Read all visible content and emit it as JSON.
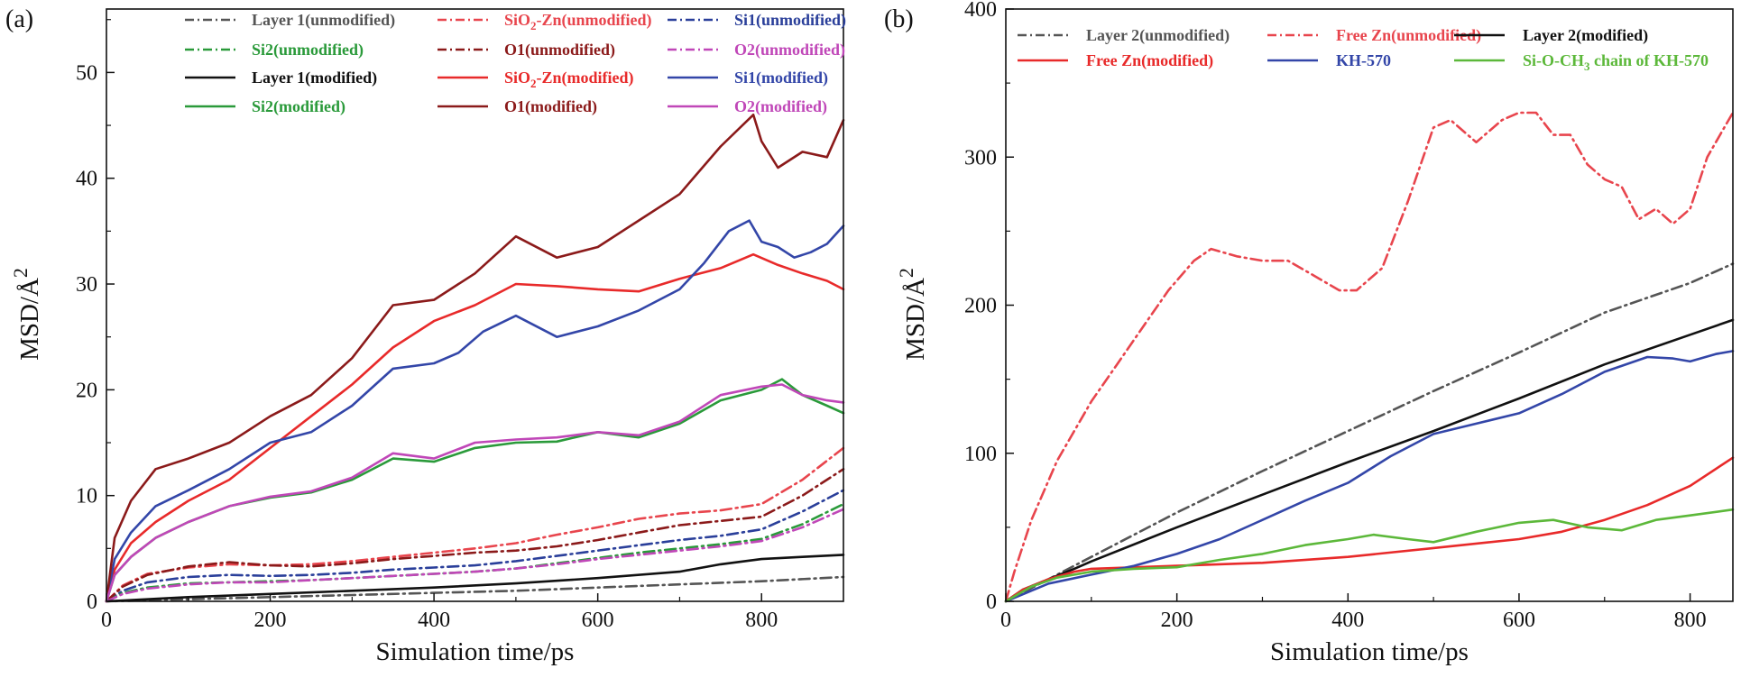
{
  "chart_data": [
    {
      "type": "line",
      "panel_label": "(a)",
      "xlabel": "Simulation time/ps",
      "ylabel": "MSD/Å",
      "ylabel_sup": "2",
      "xlim": [
        0,
        900
      ],
      "ylim": [
        0,
        56
      ],
      "xticks": [
        0,
        200,
        400,
        600,
        800
      ],
      "yticks": [
        0,
        10,
        20,
        30,
        40,
        50
      ],
      "legend_position": "top",
      "series": [
        {
          "name": "Layer 1(unmodified)",
          "sub": "",
          "name_tail": "",
          "color": "#555555",
          "style": "dashdot",
          "x": [
            0,
            100,
            200,
            300,
            400,
            500,
            600,
            700,
            800,
            900
          ],
          "y": [
            0,
            0.2,
            0.4,
            0.6,
            0.8,
            1.0,
            1.3,
            1.6,
            1.9,
            2.3
          ]
        },
        {
          "name": "SiO",
          "sub": "2",
          "name_tail": "-Zn(unmodified)",
          "color": "#e8454d",
          "style": "dashdot",
          "x": [
            0,
            20,
            50,
            100,
            150,
            200,
            250,
            300,
            350,
            400,
            450,
            500,
            550,
            600,
            650,
            700,
            750,
            800,
            850,
            900
          ],
          "y": [
            0,
            1.5,
            2.6,
            3.2,
            3.5,
            3.4,
            3.5,
            3.8,
            4.2,
            4.6,
            5.0,
            5.5,
            6.3,
            7.0,
            7.8,
            8.3,
            8.6,
            9.2,
            11.5,
            14.5
          ]
        },
        {
          "name": "Si1(unmodified)",
          "sub": "",
          "name_tail": "",
          "color": "#2a3f9a",
          "style": "dashdot",
          "x": [
            0,
            20,
            50,
            100,
            150,
            200,
            250,
            300,
            350,
            400,
            450,
            500,
            550,
            600,
            650,
            700,
            750,
            800,
            850,
            900
          ],
          "y": [
            0,
            1.0,
            1.8,
            2.3,
            2.5,
            2.4,
            2.5,
            2.7,
            3.0,
            3.2,
            3.4,
            3.8,
            4.3,
            4.8,
            5.3,
            5.8,
            6.2,
            6.8,
            8.5,
            10.5
          ]
        },
        {
          "name": "Si2(unmodified)",
          "sub": "",
          "name_tail": "",
          "color": "#2a9a3a",
          "style": "dashdot",
          "x": [
            0,
            20,
            50,
            100,
            150,
            200,
            250,
            300,
            350,
            400,
            450,
            500,
            550,
            600,
            650,
            700,
            750,
            800,
            850,
            900
          ],
          "y": [
            0,
            0.8,
            1.3,
            1.7,
            1.8,
            1.9,
            2.0,
            2.2,
            2.4,
            2.6,
            2.8,
            3.1,
            3.6,
            4.1,
            4.6,
            5.0,
            5.4,
            5.9,
            7.3,
            9.2
          ]
        },
        {
          "name": "O1(unmodified)",
          "sub": "",
          "name_tail": "",
          "color": "#8b1a1a",
          "style": "dashdot",
          "x": [
            0,
            20,
            50,
            100,
            150,
            200,
            250,
            300,
            350,
            400,
            450,
            500,
            550,
            600,
            650,
            700,
            750,
            800,
            850,
            900
          ],
          "y": [
            0,
            1.4,
            2.5,
            3.3,
            3.7,
            3.4,
            3.3,
            3.6,
            4.0,
            4.3,
            4.6,
            4.8,
            5.2,
            5.8,
            6.5,
            7.2,
            7.6,
            8.0,
            10.0,
            12.5
          ]
        },
        {
          "name": "O2(unmodified)",
          "sub": "",
          "name_tail": "",
          "color": "#c047b8",
          "style": "dashdot",
          "x": [
            0,
            20,
            50,
            100,
            150,
            200,
            250,
            300,
            350,
            400,
            450,
            500,
            550,
            600,
            650,
            700,
            750,
            800,
            850,
            900
          ],
          "y": [
            0,
            0.7,
            1.2,
            1.6,
            1.8,
            1.8,
            2.0,
            2.2,
            2.4,
            2.6,
            2.8,
            3.1,
            3.5,
            4.0,
            4.4,
            4.8,
            5.2,
            5.7,
            7.0,
            8.7
          ]
        },
        {
          "name": "Layer 1(modified)",
          "sub": "",
          "name_tail": "",
          "color": "#111111",
          "style": "solid",
          "x": [
            0,
            100,
            200,
            300,
            400,
            500,
            600,
            700,
            750,
            800,
            850,
            900
          ],
          "y": [
            0,
            0.4,
            0.7,
            1.0,
            1.3,
            1.7,
            2.2,
            2.8,
            3.5,
            4.0,
            4.2,
            4.4
          ]
        },
        {
          "name": "SiO",
          "sub": "2",
          "name_tail": "-Zn(modified)",
          "color": "#e82a2a",
          "style": "solid",
          "x": [
            0,
            10,
            30,
            60,
            100,
            150,
            200,
            250,
            300,
            350,
            400,
            450,
            500,
            550,
            600,
            650,
            700,
            750,
            790,
            820,
            850,
            880,
            900
          ],
          "y": [
            0,
            3,
            5.5,
            7.5,
            9.5,
            11.5,
            14.5,
            17.5,
            20.5,
            24,
            26.5,
            28,
            30,
            29.8,
            29.5,
            29.3,
            30.5,
            31.5,
            32.8,
            31.8,
            31,
            30.3,
            29.5
          ]
        },
        {
          "name": "Si1(modified)",
          "sub": "",
          "name_tail": "",
          "color": "#3346a8",
          "style": "solid",
          "x": [
            0,
            10,
            30,
            60,
            100,
            150,
            200,
            250,
            300,
            350,
            400,
            430,
            460,
            500,
            550,
            600,
            650,
            700,
            730,
            760,
            785,
            800,
            820,
            840,
            860,
            880,
            900
          ],
          "y": [
            0,
            4,
            6.5,
            9,
            10.5,
            12.5,
            15,
            16,
            18.5,
            22,
            22.5,
            23.5,
            25.5,
            27,
            25,
            26,
            27.5,
            29.5,
            32,
            35,
            36,
            34,
            33.5,
            32.5,
            33,
            33.8,
            35.5
          ]
        },
        {
          "name": "Si2(modified)",
          "sub": "",
          "name_tail": "",
          "color": "#2a9a3a",
          "style": "solid",
          "x": [
            0,
            10,
            30,
            60,
            100,
            150,
            200,
            250,
            300,
            350,
            400,
            450,
            500,
            550,
            600,
            650,
            700,
            750,
            800,
            825,
            850,
            880,
            900
          ],
          "y": [
            0,
            2.5,
            4.2,
            6,
            7.5,
            9,
            9.8,
            10.3,
            11.5,
            13.5,
            13.2,
            14.5,
            15,
            15.1,
            16,
            15.5,
            16.8,
            19,
            20,
            21,
            19.5,
            18.5,
            17.8
          ]
        },
        {
          "name": "O1(modified)",
          "sub": "",
          "name_tail": "",
          "color": "#8b1a1a",
          "style": "solid",
          "x": [
            0,
            10,
            30,
            60,
            100,
            150,
            200,
            250,
            300,
            350,
            400,
            450,
            500,
            550,
            600,
            650,
            700,
            750,
            790,
            800,
            820,
            850,
            880,
            900
          ],
          "y": [
            0,
            6,
            9.5,
            12.5,
            13.5,
            15,
            17.5,
            19.5,
            23,
            28,
            28.5,
            31,
            34.5,
            32.5,
            33.5,
            36,
            38.5,
            43,
            46,
            43.5,
            41,
            42.5,
            42,
            45.5
          ]
        },
        {
          "name": "O2(modified)",
          "sub": "",
          "name_tail": "",
          "color": "#c047b8",
          "style": "solid",
          "x": [
            0,
            10,
            30,
            60,
            100,
            150,
            200,
            250,
            300,
            350,
            400,
            450,
            500,
            550,
            600,
            650,
            700,
            750,
            800,
            825,
            850,
            880,
            900
          ],
          "y": [
            0,
            2.5,
            4.2,
            6,
            7.5,
            9,
            9.9,
            10.4,
            11.7,
            14,
            13.5,
            15,
            15.3,
            15.5,
            16,
            15.7,
            17,
            19.5,
            20.3,
            20.5,
            19.5,
            19,
            18.8
          ]
        }
      ]
    },
    {
      "type": "line",
      "panel_label": "(b)",
      "xlabel": "Simulation time/ps",
      "ylabel": "MSD/Å",
      "ylabel_sup": "2",
      "xlim": [
        0,
        850
      ],
      "ylim": [
        0,
        400
      ],
      "xticks": [
        0,
        200,
        400,
        600,
        800
      ],
      "yticks": [
        0,
        100,
        200,
        300,
        400
      ],
      "legend_position": "top",
      "series": [
        {
          "name": "Layer 2(unmodified)",
          "sub": "",
          "name_tail": "",
          "color": "#555555",
          "style": "dashdot",
          "x": [
            0,
            50,
            100,
            200,
            300,
            400,
            500,
            600,
            700,
            800,
            850
          ],
          "y": [
            0,
            15,
            30,
            60,
            88,
            115,
            142,
            168,
            195,
            215,
            228
          ]
        },
        {
          "name": "Free Zn(unmodified)",
          "sub": "",
          "name_tail": "",
          "color": "#e8454d",
          "style": "dashdot",
          "x": [
            0,
            10,
            30,
            60,
            100,
            130,
            160,
            190,
            220,
            240,
            270,
            300,
            330,
            360,
            390,
            410,
            440,
            470,
            500,
            520,
            550,
            580,
            600,
            620,
            640,
            660,
            680,
            700,
            720,
            740,
            760,
            780,
            800,
            820,
            840,
            850
          ],
          "y": [
            0,
            20,
            55,
            95,
            135,
            160,
            185,
            210,
            230,
            238,
            233,
            230,
            230,
            220,
            210,
            210,
            225,
            270,
            320,
            325,
            310,
            325,
            330,
            330,
            315,
            315,
            295,
            285,
            280,
            258,
            265,
            255,
            265,
            300,
            320,
            330
          ]
        },
        {
          "name": "Layer 2(modified)",
          "sub": "",
          "name_tail": "",
          "color": "#111111",
          "style": "solid",
          "x": [
            0,
            20,
            50,
            80,
            100,
            200,
            300,
            400,
            500,
            600,
            700,
            800,
            850
          ],
          "y": [
            0,
            8,
            15,
            22,
            27,
            50,
            72,
            94,
            115,
            137,
            160,
            180,
            190
          ]
        },
        {
          "name": "Free Zn(modified)",
          "sub": "",
          "name_tail": "",
          "color": "#e82a2a",
          "style": "solid",
          "x": [
            0,
            20,
            50,
            80,
            100,
            200,
            300,
            400,
            500,
            600,
            650,
            700,
            750,
            800,
            850
          ],
          "y": [
            0,
            8,
            15,
            20,
            22,
            24,
            26,
            30,
            36,
            42,
            47,
            55,
            65,
            78,
            97
          ]
        },
        {
          "name": "KH-570",
          "sub": "",
          "name_tail": "",
          "color": "#3346a8",
          "style": "solid",
          "x": [
            0,
            50,
            100,
            150,
            200,
            250,
            300,
            350,
            400,
            450,
            500,
            550,
            600,
            650,
            700,
            750,
            780,
            800,
            830,
            850
          ],
          "y": [
            0,
            12,
            18,
            24,
            32,
            42,
            55,
            68,
            80,
            98,
            113,
            120,
            127,
            140,
            155,
            165,
            164,
            162,
            167,
            169
          ]
        },
        {
          "name": "Si-O-CH",
          "sub": "3",
          "name_tail": " chain of KH-570",
          "color": "#5cb83a",
          "style": "solid",
          "x": [
            0,
            30,
            60,
            100,
            150,
            200,
            250,
            300,
            350,
            400,
            430,
            470,
            500,
            550,
            600,
            640,
            680,
            720,
            760,
            800,
            850
          ],
          "y": [
            0,
            10,
            16,
            20,
            22,
            23,
            28,
            32,
            38,
            42,
            45,
            42,
            40,
            47,
            53,
            55,
            50,
            48,
            55,
            58,
            62
          ]
        }
      ]
    }
  ]
}
